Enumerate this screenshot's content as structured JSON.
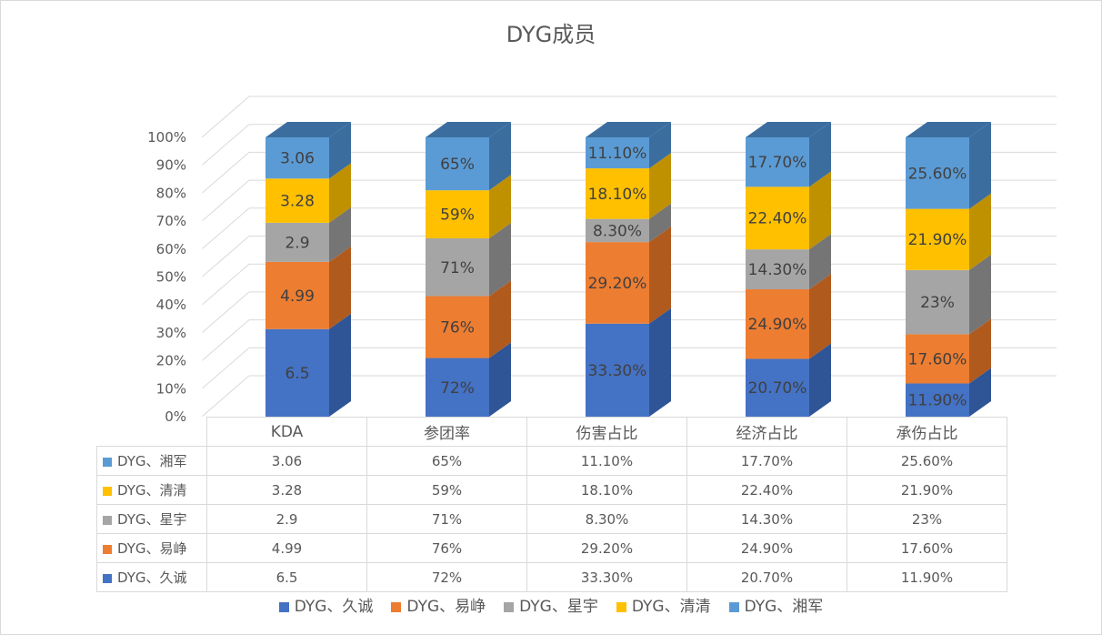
{
  "chart_data": {
    "type": "bar",
    "stacked": "percent",
    "title": "DYG成员",
    "categories": [
      "KDA",
      "参团率",
      "伤害占比",
      "经济占比",
      "承伤占比"
    ],
    "y_ticks": [
      "0%",
      "10%",
      "20%",
      "30%",
      "40%",
      "50%",
      "60%",
      "70%",
      "80%",
      "90%",
      "100%"
    ],
    "ylim": [
      0,
      1
    ],
    "grid": true,
    "legend_position": "bottom",
    "data_table": true,
    "series": [
      {
        "name": "DYG、久诚",
        "color": "#4472C4",
        "side": "#2F5597",
        "values": [
          6.5,
          0.72,
          0.333,
          0.207,
          0.119
        ],
        "labels": [
          "6.5",
          "72%",
          "33.30%",
          "20.70%",
          "11.90%"
        ]
      },
      {
        "name": "DYG、易峥",
        "color": "#ED7D31",
        "side": "#B05A1E",
        "values": [
          4.99,
          0.76,
          0.292,
          0.249,
          0.176
        ],
        "labels": [
          "4.99",
          "76%",
          "29.20%",
          "24.90%",
          "17.60%"
        ]
      },
      {
        "name": "DYG、星宇",
        "color": "#A5A5A5",
        "side": "#757575",
        "values": [
          2.9,
          0.71,
          0.083,
          0.143,
          0.23
        ],
        "labels": [
          "2.9",
          "71%",
          "8.30%",
          "14.30%",
          "23%"
        ]
      },
      {
        "name": "DYG、清清",
        "color": "#FFC000",
        "side": "#BF9000",
        "values": [
          3.28,
          0.59,
          0.181,
          0.224,
          0.219
        ],
        "labels": [
          "3.28",
          "59%",
          "18.10%",
          "22.40%",
          "21.90%"
        ]
      },
      {
        "name": "DYG、湘军",
        "color": "#5B9BD5",
        "side": "#3B6E9E",
        "values": [
          3.06,
          0.65,
          0.111,
          0.177,
          0.256
        ],
        "labels": [
          "3.06",
          "65%",
          "11.10%",
          "17.70%",
          "25.60%"
        ]
      }
    ]
  }
}
